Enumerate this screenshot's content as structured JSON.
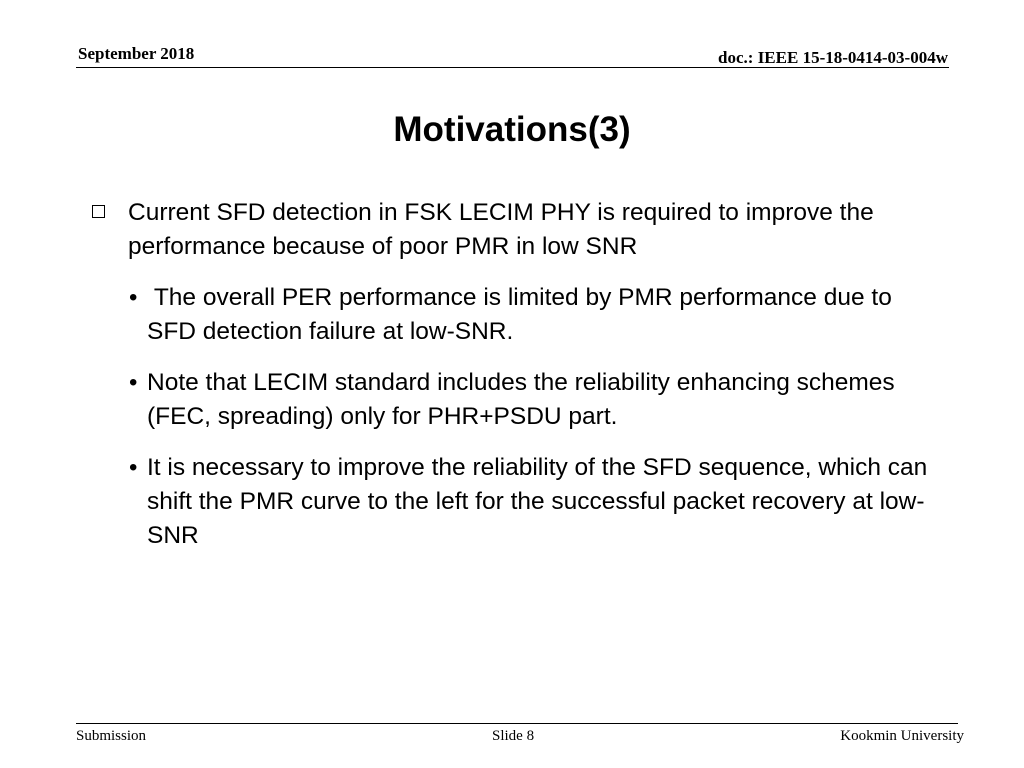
{
  "header": {
    "date": "September 2018",
    "doc_id": "doc.: IEEE 15-18-0414-03-004w"
  },
  "slide": {
    "title": "Motivations(3)",
    "main_bullet": "Current SFD detection in FSK LECIM PHY is required to improve the performance because of poor PMR in low SNR",
    "sub_bullets": [
      " The overall PER performance is limited by PMR performance due to SFD detection failure at low-SNR.",
      "Note that LECIM standard includes the reliability enhancing schemes (FEC, spreading) only for PHR+PSDU part.",
      "It is necessary to improve the reliability of the SFD sequence, which can shift the PMR curve to the left for the successful packet recovery at low-SNR"
    ],
    "bullet_glyph": "•"
  },
  "footer": {
    "left": "Submission",
    "center": "Slide 8",
    "right": "Kookmin University"
  }
}
